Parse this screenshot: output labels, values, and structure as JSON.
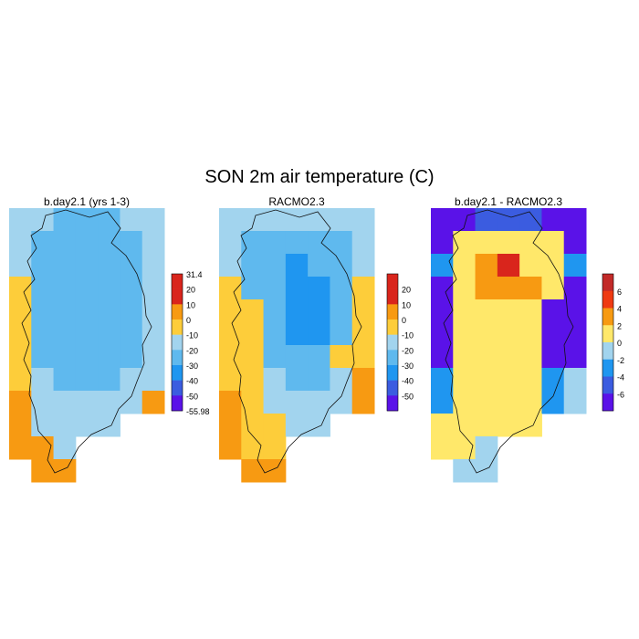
{
  "figure": {
    "title": "SON 2m air temperature (C)"
  },
  "colors": {
    "purple": "#5a12e8",
    "blue_dark": "#3b5ce0",
    "blue": "#1f96f0",
    "blue_mid": "#45aef0",
    "blue_light": "#5fb9ee",
    "blue_pale": "#a2d4ee",
    "yellow_light": "#ffe86a",
    "yellow": "#fdcd3a",
    "orange": "#f79a12",
    "orange_dark": "#ef7a10",
    "red_orange": "#ef3a12",
    "red": "#d9251c",
    "red_dark": "#c22a28",
    "outline": "#111111"
  },
  "chart_data": [
    {
      "type": "heatmap",
      "title": "b.day2.1 (yrs 1-3)",
      "colorbar": {
        "labels": [
          "31.4",
          "20",
          "10",
          "0",
          "-10",
          "-20",
          "-30",
          "-40",
          "-50",
          "-55.98"
        ],
        "colors": [
          "red",
          "red",
          "orange",
          "yellow",
          "blue_pale",
          "blue_light",
          "blue",
          "blue_dark",
          "purple"
        ]
      },
      "grid_rows": 12,
      "grid_cols": 7,
      "cells": [
        "PPBBBPP",
        "PBBBBBP",
        "PBBBBBP",
        "YBBBBBP",
        "YBBBBBP",
        "YBBBBBP",
        "YBBBBBP",
        "YPBBBPP",
        "OPPPPPO",
        "OPPPP..",
        "OOP....",
        ".OO...."
      ],
      "legend": {
        "B": "blue_light",
        "P": "blue_pale",
        "Y": "yellow",
        "O": "orange"
      }
    },
    {
      "type": "heatmap",
      "title": "RACMO2.3",
      "colorbar": {
        "labels": [
          "20",
          "10",
          "0",
          "-10",
          "-20",
          "-30",
          "-40",
          "-50"
        ],
        "colors": [
          "red",
          "red",
          "orange",
          "yellow",
          "blue_pale",
          "blue_light",
          "blue",
          "blue_dark",
          "purple"
        ]
      },
      "grid_rows": 12,
      "grid_cols": 7,
      "cells": [
        "PPPPPPP",
        "PBBBBBP",
        "PBBDBBP",
        "YBBDDBY",
        "YYBDDBY",
        "YYBDDBY",
        "YYBBBYY",
        "YYPBBPO",
        "OYPPPPO",
        "OYYPP..",
        "OYY....",
        ".OO...."
      ],
      "legend": {
        "B": "blue_light",
        "D": "blue",
        "P": "blue_pale",
        "Y": "yellow",
        "O": "orange"
      }
    },
    {
      "type": "heatmap",
      "title": "b.day2.1 - RACMO2.3",
      "colorbar": {
        "labels": [
          "6",
          "4",
          "2",
          "0",
          "-2",
          "-4",
          "-6"
        ],
        "colors": [
          "red_dark",
          "red_orange",
          "orange",
          "yellow_light",
          "blue_pale",
          "blue",
          "blue_dark",
          "purple"
        ]
      },
      "grid_rows": 12,
      "grid_cols": 7,
      "cells": [
        "VVLLLVV",
        "VYYYYYV",
        "BYORYYB",
        "VYOOOYV",
        "VYYYYVV",
        "VYYYYVV",
        "VYYYYVV",
        "BYYYYBP",
        "BYYYYBP",
        "YYYYY..",
        "YYP....",
        ".PP...."
      ],
      "legend": {
        "V": "purple",
        "L": "blue_dark",
        "Y": "yellow_light",
        "O": "orange",
        "R": "red",
        "B": "blue",
        "P": "blue_pale"
      }
    }
  ]
}
